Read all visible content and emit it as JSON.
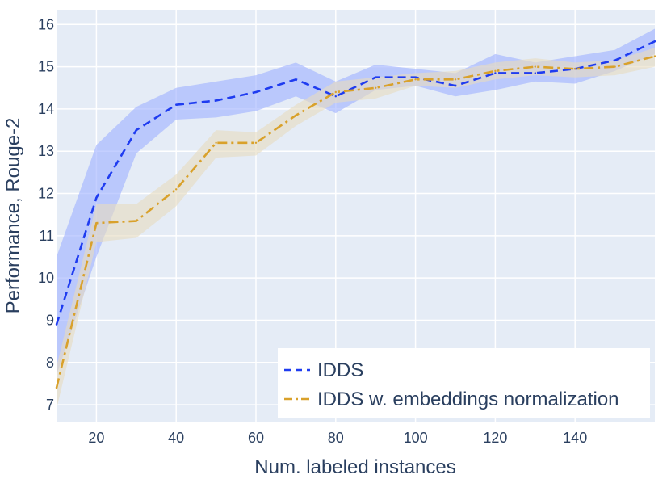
{
  "chart_data": {
    "type": "line",
    "title": "",
    "xlabel": "Num. labeled instances",
    "ylabel": "Performance, Rouge-2",
    "xlim": [
      10,
      160
    ],
    "ylim": [
      6.6,
      16.35
    ],
    "x_ticks": [
      20,
      40,
      60,
      80,
      100,
      120,
      140
    ],
    "y_ticks": [
      7,
      8,
      9,
      10,
      11,
      12,
      13,
      14,
      15,
      16
    ],
    "grid": true,
    "legend_position": "bottom-right",
    "x": [
      10,
      20,
      30,
      40,
      50,
      60,
      70,
      80,
      90,
      100,
      110,
      120,
      130,
      140,
      150,
      160
    ],
    "series": [
      {
        "name": "IDDS",
        "color": "#1f3cf0",
        "band_color": "#a0b1ff",
        "dash": "dash",
        "values": [
          8.9,
          11.9,
          13.5,
          14.1,
          14.2,
          14.4,
          14.7,
          14.3,
          14.75,
          14.75,
          14.55,
          14.85,
          14.85,
          14.95,
          15.15,
          15.6
        ],
        "lower": [
          7.7,
          10.5,
          12.95,
          13.75,
          13.8,
          13.95,
          14.3,
          13.9,
          14.45,
          14.55,
          14.3,
          14.45,
          14.65,
          14.6,
          14.9,
          15.3
        ],
        "upper": [
          10.5,
          13.15,
          14.05,
          14.5,
          14.65,
          14.8,
          15.1,
          14.65,
          15.05,
          14.95,
          14.85,
          15.3,
          15.1,
          15.25,
          15.4,
          15.9
        ]
      },
      {
        "name": "IDDS w. embeddings normalization",
        "color": "#d9a12b",
        "band_color": "#e7dcc0",
        "dash": "dashdot",
        "values": [
          7.4,
          11.3,
          11.35,
          12.1,
          13.2,
          13.2,
          13.85,
          14.4,
          14.5,
          14.7,
          14.7,
          14.9,
          15.0,
          14.95,
          15.0,
          15.25
        ],
        "lower": [
          6.9,
          10.85,
          10.95,
          11.7,
          12.85,
          12.9,
          13.6,
          14.15,
          14.25,
          14.55,
          14.5,
          14.7,
          14.8,
          14.75,
          14.8,
          15.0
        ],
        "upper": [
          7.9,
          11.75,
          11.75,
          12.45,
          13.5,
          13.45,
          14.1,
          14.65,
          14.75,
          14.85,
          14.9,
          15.1,
          15.2,
          15.1,
          15.15,
          15.45
        ]
      }
    ]
  }
}
